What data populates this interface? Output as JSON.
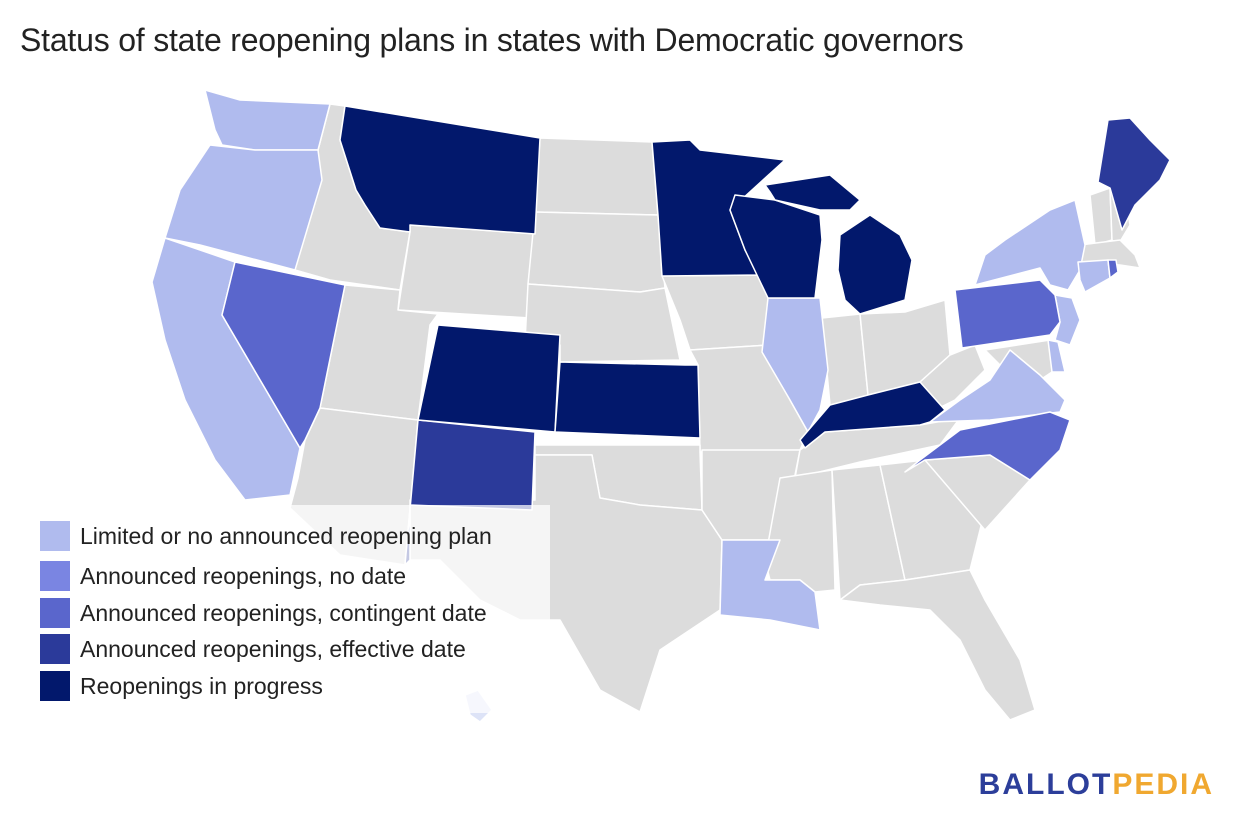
{
  "title": "Status of state reopening plans in states with Democratic governors",
  "colors": {
    "limited": "#b0bbee",
    "no_date": "#7a85e2",
    "contingent": "#5a66cc",
    "effective": "#2b3a9a",
    "in_progress": "#02186c",
    "other": "#dcdcdc",
    "hawaii": "#dde3f7"
  },
  "legend": [
    {
      "label": "Limited or no announced reopening plan",
      "color": "#b0bbee"
    },
    {
      "label": "Announced reopenings, no date",
      "color": "#7a85e2"
    },
    {
      "label": "Announced reopenings, contingent date",
      "color": "#5a66cc"
    },
    {
      "label": "Announced reopenings, effective date",
      "color": "#2b3a9a"
    },
    {
      "label": "Reopenings in progress",
      "color": "#02186c"
    }
  ],
  "states": {
    "limited": [
      "WA",
      "OR",
      "CA",
      "IL",
      "NY",
      "NJ",
      "CT",
      "DE",
      "VA",
      "LA",
      "HI"
    ],
    "contingent": [
      "NV",
      "PA",
      "NC",
      "RI"
    ],
    "effective": [
      "NM",
      "ME"
    ],
    "in_progress": [
      "MT",
      "MN",
      "WI",
      "MI",
      "CO",
      "KS",
      "KY"
    ]
  },
  "logo": {
    "part1": "BALLOT",
    "part2": "PEDIA"
  }
}
